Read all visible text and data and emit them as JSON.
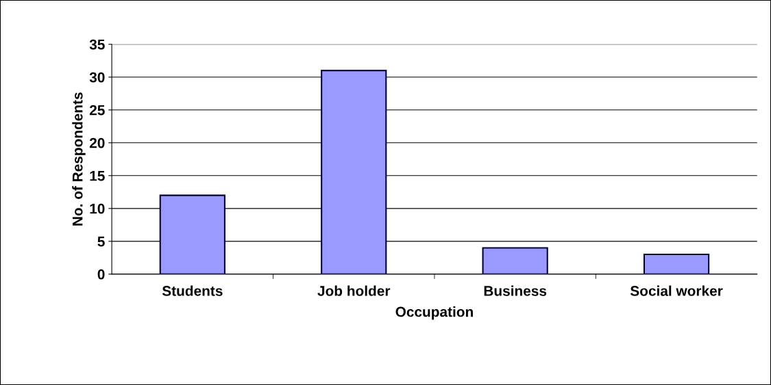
{
  "chart_data": {
    "type": "bar",
    "xlabel": "Occupation",
    "ylabel": "No. of Respondents",
    "categories": [
      "Students",
      "Job holder",
      "Business",
      "Social worker"
    ],
    "values": [
      12,
      31,
      4,
      3
    ],
    "color": "#9999ff",
    "ylim": [
      0,
      35
    ],
    "yticks": [
      0,
      5,
      10,
      15,
      20,
      25,
      30,
      35
    ],
    "grid": "y",
    "legend": false
  }
}
